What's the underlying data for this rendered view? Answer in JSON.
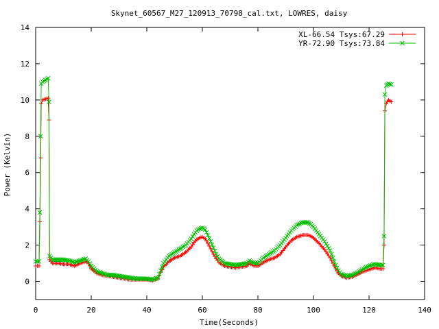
{
  "chart_data": {
    "type": "line",
    "title": "Skynet_60567_M27_120913_70798_cal.txt, LOWRES, daisy",
    "xlabel": "Time(Seconds)",
    "ylabel": "Power (Kelvin)",
    "xlim": [
      0,
      140
    ],
    "ylim": [
      -1,
      14
    ],
    "xticks": [
      0,
      20,
      40,
      60,
      80,
      100,
      120,
      140
    ],
    "yticks": [
      0,
      2,
      4,
      6,
      8,
      10,
      12,
      14
    ],
    "grid": false,
    "legend_position": "top-right",
    "series": [
      {
        "name": "XL-66.54 Tsys:67.29",
        "color": "#ff0000",
        "marker": "plus",
        "points": [
          [
            0,
            0.85
          ],
          [
            1.2,
            0.85
          ],
          [
            1.5,
            3.3
          ],
          [
            1.8,
            6.8
          ],
          [
            2.0,
            9.8
          ],
          [
            2.5,
            10.0
          ],
          [
            3.5,
            10.05
          ],
          [
            4.5,
            10.1
          ],
          [
            4.8,
            8.9
          ],
          [
            5.0,
            1.2
          ],
          [
            6,
            1.0
          ],
          [
            8,
            1.0
          ],
          [
            10,
            0.95
          ],
          [
            12,
            0.95
          ],
          [
            14,
            0.85
          ],
          [
            16,
            1.0
          ],
          [
            18,
            1.1
          ],
          [
            19,
            1.0
          ],
          [
            20,
            0.7
          ],
          [
            22,
            0.45
          ],
          [
            24,
            0.35
          ],
          [
            26,
            0.3
          ],
          [
            28,
            0.25
          ],
          [
            30,
            0.2
          ],
          [
            32,
            0.15
          ],
          [
            34,
            0.1
          ],
          [
            36,
            0.1
          ],
          [
            38,
            0.1
          ],
          [
            40,
            0.1
          ],
          [
            42,
            0.05
          ],
          [
            44,
            0.15
          ],
          [
            45,
            0.5
          ],
          [
            46,
            0.8
          ],
          [
            48,
            1.1
          ],
          [
            50,
            1.3
          ],
          [
            52,
            1.4
          ],
          [
            54,
            1.6
          ],
          [
            56,
            1.9
          ],
          [
            57,
            2.15
          ],
          [
            58,
            2.3
          ],
          [
            59,
            2.4
          ],
          [
            60,
            2.45
          ],
          [
            61,
            2.35
          ],
          [
            62,
            2.1
          ],
          [
            63,
            1.8
          ],
          [
            64,
            1.5
          ],
          [
            65,
            1.25
          ],
          [
            66,
            1.05
          ],
          [
            68,
            0.85
          ],
          [
            70,
            0.8
          ],
          [
            72,
            0.75
          ],
          [
            74,
            0.8
          ],
          [
            76,
            0.85
          ],
          [
            77,
            1.0
          ],
          [
            78,
            0.9
          ],
          [
            79,
            0.85
          ],
          [
            80,
            0.85
          ],
          [
            82,
            1.05
          ],
          [
            84,
            1.2
          ],
          [
            86,
            1.3
          ],
          [
            88,
            1.5
          ],
          [
            90,
            1.9
          ],
          [
            92,
            2.25
          ],
          [
            94,
            2.45
          ],
          [
            96,
            2.55
          ],
          [
            98,
            2.55
          ],
          [
            99,
            2.5
          ],
          [
            100,
            2.4
          ],
          [
            102,
            2.1
          ],
          [
            104,
            1.75
          ],
          [
            106,
            1.3
          ],
          [
            107,
            1.0
          ],
          [
            108,
            0.7
          ],
          [
            109,
            0.45
          ],
          [
            110,
            0.3
          ],
          [
            112,
            0.2
          ],
          [
            114,
            0.25
          ],
          [
            116,
            0.4
          ],
          [
            118,
            0.55
          ],
          [
            120,
            0.65
          ],
          [
            122,
            0.75
          ],
          [
            124,
            0.7
          ],
          [
            125,
            0.7
          ],
          [
            125.4,
            2.0
          ],
          [
            125.7,
            9.4
          ],
          [
            126.2,
            9.8
          ],
          [
            127,
            10.0
          ],
          [
            128,
            9.9
          ]
        ]
      },
      {
        "name": "YR-72.90 Tsys:73.84",
        "color": "#00c000",
        "marker": "cross",
        "points": [
          [
            0,
            1.1
          ],
          [
            1.2,
            1.1
          ],
          [
            1.5,
            3.8
          ],
          [
            1.8,
            8.0
          ],
          [
            2.0,
            10.9
          ],
          [
            2.5,
            11.0
          ],
          [
            3.5,
            11.1
          ],
          [
            4.5,
            11.2
          ],
          [
            4.8,
            9.9
          ],
          [
            5.0,
            1.4
          ],
          [
            6,
            1.2
          ],
          [
            8,
            1.2
          ],
          [
            10,
            1.2
          ],
          [
            12,
            1.15
          ],
          [
            14,
            1.05
          ],
          [
            16,
            1.15
          ],
          [
            18,
            1.25
          ],
          [
            19,
            1.1
          ],
          [
            20,
            0.85
          ],
          [
            22,
            0.55
          ],
          [
            24,
            0.45
          ],
          [
            26,
            0.35
          ],
          [
            28,
            0.35
          ],
          [
            30,
            0.3
          ],
          [
            32,
            0.25
          ],
          [
            34,
            0.2
          ],
          [
            36,
            0.15
          ],
          [
            38,
            0.15
          ],
          [
            40,
            0.15
          ],
          [
            42,
            0.1
          ],
          [
            44,
            0.2
          ],
          [
            45,
            0.6
          ],
          [
            46,
            1.0
          ],
          [
            48,
            1.4
          ],
          [
            50,
            1.6
          ],
          [
            52,
            1.8
          ],
          [
            54,
            2.0
          ],
          [
            56,
            2.35
          ],
          [
            57,
            2.6
          ],
          [
            58,
            2.8
          ],
          [
            59,
            2.9
          ],
          [
            60,
            2.95
          ],
          [
            61,
            2.85
          ],
          [
            62,
            2.55
          ],
          [
            63,
            2.2
          ],
          [
            64,
            1.85
          ],
          [
            65,
            1.5
          ],
          [
            66,
            1.25
          ],
          [
            68,
            1.0
          ],
          [
            70,
            0.95
          ],
          [
            72,
            0.9
          ],
          [
            74,
            0.95
          ],
          [
            76,
            1.0
          ],
          [
            77,
            1.15
          ],
          [
            78,
            1.05
          ],
          [
            79,
            1.0
          ],
          [
            80,
            1.0
          ],
          [
            82,
            1.3
          ],
          [
            84,
            1.5
          ],
          [
            86,
            1.7
          ],
          [
            88,
            2.0
          ],
          [
            90,
            2.4
          ],
          [
            92,
            2.8
          ],
          [
            94,
            3.1
          ],
          [
            96,
            3.25
          ],
          [
            98,
            3.25
          ],
          [
            99,
            3.15
          ],
          [
            100,
            3.0
          ],
          [
            102,
            2.6
          ],
          [
            104,
            2.2
          ],
          [
            106,
            1.7
          ],
          [
            107,
            1.3
          ],
          [
            108,
            0.9
          ],
          [
            109,
            0.6
          ],
          [
            110,
            0.4
          ],
          [
            112,
            0.3
          ],
          [
            114,
            0.35
          ],
          [
            116,
            0.5
          ],
          [
            118,
            0.7
          ],
          [
            120,
            0.85
          ],
          [
            122,
            0.95
          ],
          [
            124,
            0.9
          ],
          [
            125,
            0.9
          ],
          [
            125.4,
            2.5
          ],
          [
            125.7,
            10.3
          ],
          [
            126.2,
            10.8
          ],
          [
            127,
            10.9
          ],
          [
            128,
            10.85
          ]
        ]
      }
    ]
  }
}
